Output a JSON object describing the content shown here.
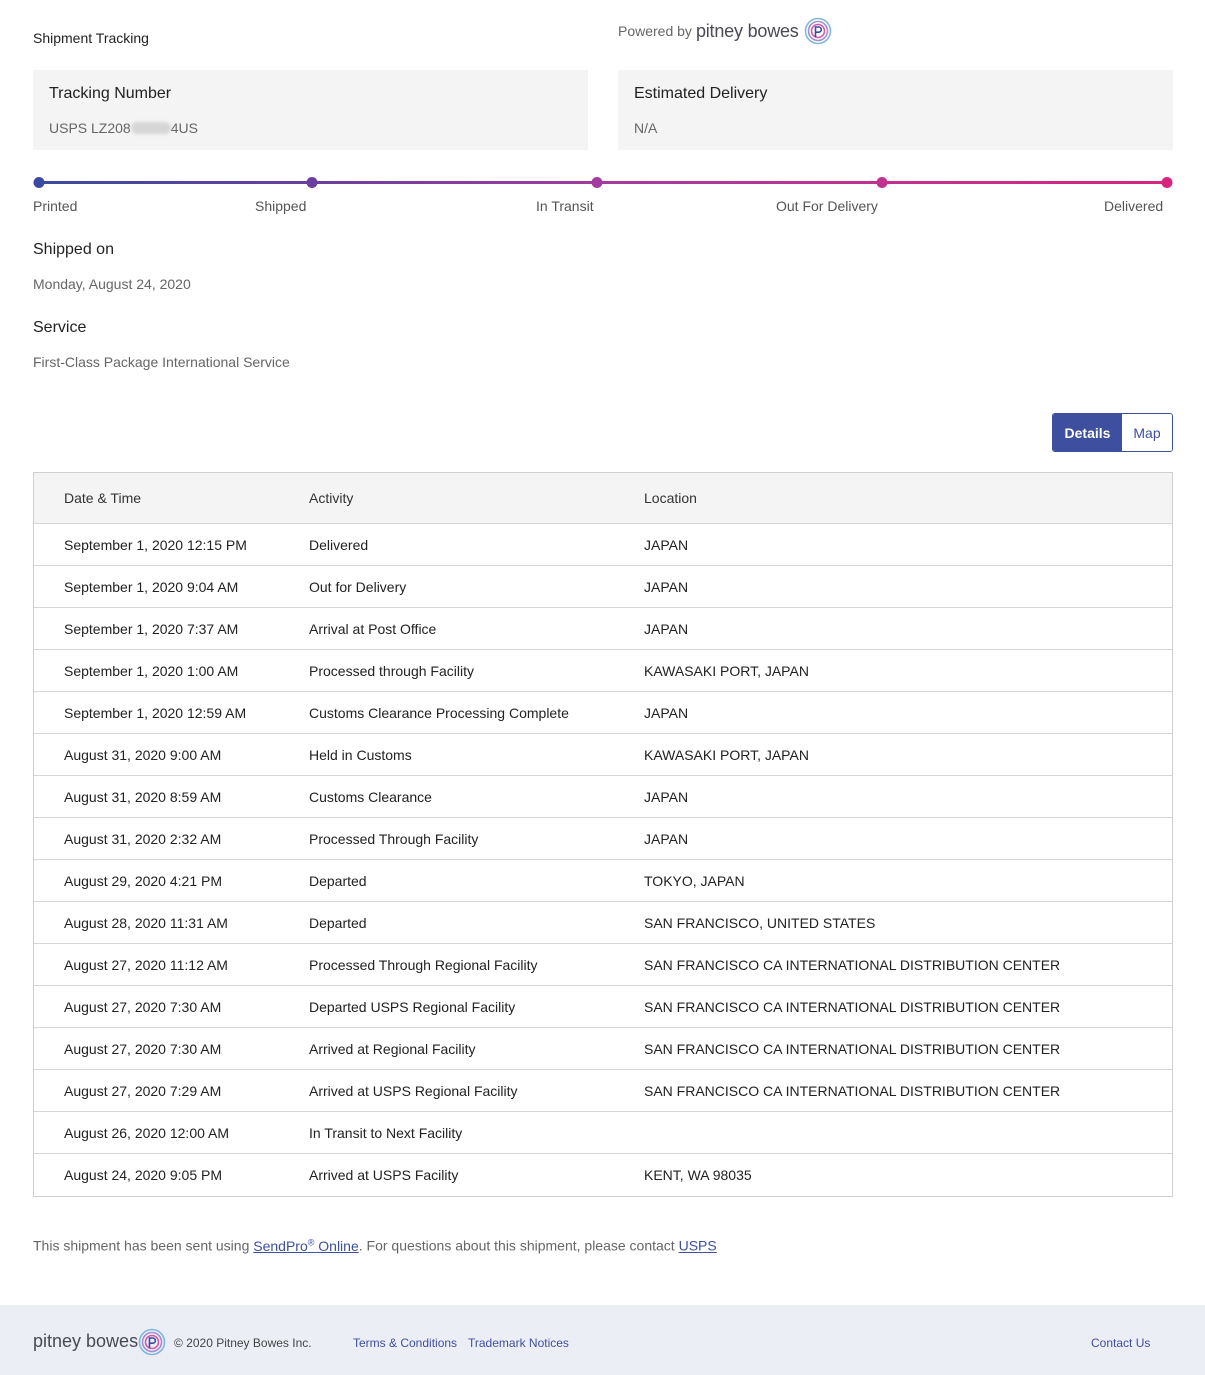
{
  "header": {
    "title": "Shipment Tracking",
    "powered_by": "Powered by",
    "brand": "pitney bowes"
  },
  "tracking": {
    "label": "Tracking Number",
    "value_prefix": "USPS LZ208",
    "value_suffix": "4US"
  },
  "delivery": {
    "label": "Estimated Delivery",
    "value": "N/A"
  },
  "progress": {
    "steps": [
      "Printed",
      "Shipped",
      "In Transit",
      "Out For Delivery",
      "Delivered"
    ],
    "colors": [
      "#3b4aa0",
      "#6b3fa0",
      "#a53aa0",
      "#c4308f",
      "#d6257f"
    ]
  },
  "shipped_on": {
    "label": "Shipped on",
    "value": "Monday, August 24, 2020"
  },
  "service": {
    "label": "Service",
    "value": "First-Class Package International Service"
  },
  "view_toggle": {
    "details": "Details",
    "map": "Map",
    "selected": "Details"
  },
  "table": {
    "headers": [
      "Date & Time",
      "Activity",
      "Location"
    ],
    "rows": [
      [
        "September 1, 2020 12:15 PM",
        "Delivered",
        "JAPAN"
      ],
      [
        "September 1, 2020 9:04 AM",
        "Out for Delivery",
        "JAPAN"
      ],
      [
        "September 1, 2020 7:37 AM",
        "Arrival at Post Office",
        "JAPAN"
      ],
      [
        "September 1, 2020 1:00 AM",
        "Processed through Facility",
        "KAWASAKI PORT, JAPAN"
      ],
      [
        "September 1, 2020 12:59 AM",
        "Customs Clearance Processing Complete",
        "JAPAN"
      ],
      [
        "August 31, 2020 9:00 AM",
        "Held in Customs",
        "KAWASAKI PORT, JAPAN"
      ],
      [
        "August 31, 2020 8:59 AM",
        "Customs Clearance",
        "JAPAN"
      ],
      [
        "August 31, 2020 2:32 AM",
        "Processed Through Facility",
        "JAPAN"
      ],
      [
        "August 29, 2020 4:21 PM",
        "Departed",
        "TOKYO, JAPAN"
      ],
      [
        "August 28, 2020 11:31 AM",
        "Departed",
        "SAN FRANCISCO, UNITED STATES"
      ],
      [
        "August 27, 2020 11:12 AM",
        "Processed Through Regional Facility",
        "SAN FRANCISCO CA INTERNATIONAL DISTRIBUTION CENTER"
      ],
      [
        "August 27, 2020 7:30 AM",
        "Departed USPS Regional Facility",
        "SAN FRANCISCO CA INTERNATIONAL DISTRIBUTION CENTER"
      ],
      [
        "August 27, 2020 7:30 AM",
        "Arrived at Regional Facility",
        "SAN FRANCISCO CA INTERNATIONAL DISTRIBUTION CENTER"
      ],
      [
        "August 27, 2020 7:29 AM",
        "Arrived at USPS Regional Facility",
        "SAN FRANCISCO CA INTERNATIONAL DISTRIBUTION CENTER"
      ],
      [
        "August 26, 2020 12:00 AM",
        "In Transit to Next Facility",
        ""
      ],
      [
        "August 24, 2020 9:05 PM",
        "Arrived at USPS Facility",
        "KENT, WA 98035"
      ]
    ]
  },
  "footnote": {
    "text1": "This shipment has been sent using ",
    "link1": "SendPro",
    "link1_sup": "®",
    "link1_rest": " Online",
    "text2": ". For questions about this shipment, please contact ",
    "link2": "USPS"
  },
  "footer": {
    "brand": "pitney bowes",
    "copyright": "© 2020 Pitney Bowes Inc.",
    "terms": "Terms & Conditions",
    "trademark": "Trademark Notices",
    "contact": "Contact Us"
  }
}
